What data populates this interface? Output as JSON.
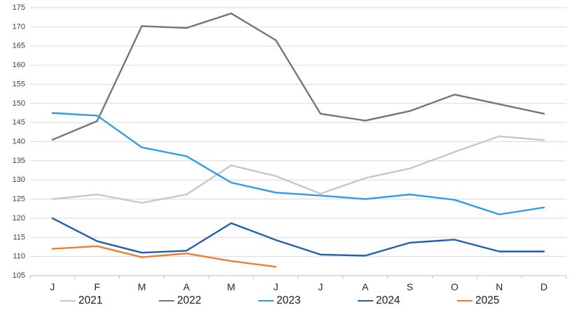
{
  "chart_data": {
    "type": "line",
    "title": "",
    "xlabel": "",
    "ylabel": "",
    "grid": true,
    "legend_position": "bottom",
    "x_categories": [
      "J",
      "F",
      "M",
      "A",
      "M",
      "J",
      "J",
      "A",
      "S",
      "O",
      "N",
      "D"
    ],
    "y_axis": {
      "min": 105,
      "max": 175,
      "step": 5,
      "tick_labels": [
        "105",
        "110",
        "115",
        "120",
        "125",
        "130",
        "135",
        "140",
        "145",
        "150",
        "155",
        "160",
        "165",
        "170",
        "175"
      ]
    },
    "series": [
      {
        "name": "2021",
        "color": "#c7c7c7",
        "values": [
          125.0,
          126.2,
          124.0,
          126.2,
          133.8,
          131.0,
          126.4,
          130.5,
          133.0,
          137.3,
          141.4,
          140.4
        ]
      },
      {
        "name": "2022",
        "color": "#757575",
        "values": [
          140.5,
          145.4,
          170.2,
          169.7,
          173.5,
          166.5,
          147.3,
          145.5,
          148.0,
          152.3,
          149.8,
          147.3
        ]
      },
      {
        "name": "2023",
        "color": "#2f9bec",
        "values": [
          147.5,
          146.8,
          138.5,
          136.2,
          129.3,
          126.7,
          125.9,
          125.0,
          126.2,
          124.8,
          121.0,
          122.8
        ]
      },
      {
        "name": "2024",
        "color": "#1f5fad",
        "values": [
          120.0,
          114.0,
          111.0,
          111.5,
          118.7,
          114.3,
          110.5,
          110.2,
          113.6,
          114.4,
          111.3,
          111.3
        ]
      },
      {
        "name": "2025",
        "color": "#ee7c31",
        "values": [
          112.0,
          112.7,
          109.8,
          110.8,
          108.8,
          107.3
        ]
      }
    ]
  },
  "style": {
    "gridline_color": "#d9d9d9",
    "axis_color": "#bfbfbf",
    "y_label_color": "#404040",
    "x_label_color": "#262626"
  }
}
